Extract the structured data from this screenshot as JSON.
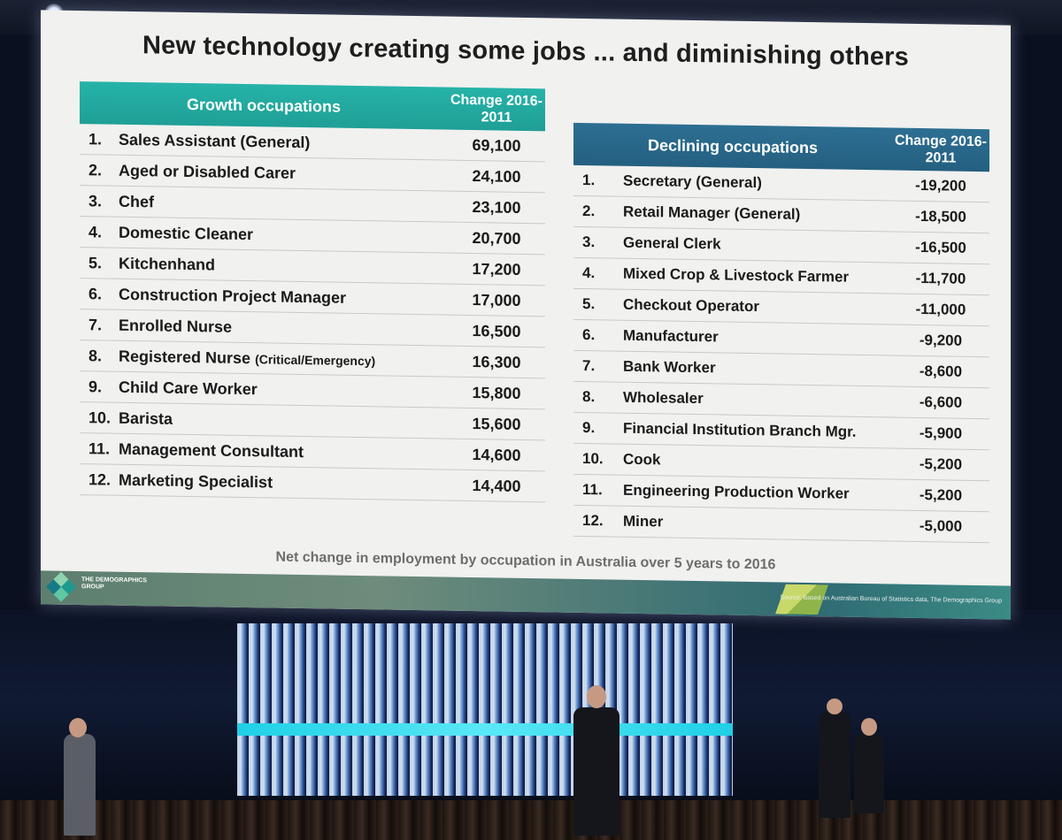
{
  "slide": {
    "title": "New technology creating some jobs ... and diminishing others",
    "caption": "Net change in employment by occupation in Australia over 5 years to 2016",
    "logo_text": "THE DEMOGRAPHICS GROUP",
    "source": "Source: Based on Australian Bureau of Statistics data, The Demographics Group"
  },
  "growth": {
    "header_occupation": "Growth occupations",
    "header_change": "Change 2016-2011",
    "accent_color": "#22aa9f",
    "rows": [
      {
        "num": "1.",
        "name": "Sales Assistant (General)",
        "note": "",
        "value": "69,100"
      },
      {
        "num": "2.",
        "name": "Aged or Disabled Carer",
        "note": "",
        "value": "24,100"
      },
      {
        "num": "3.",
        "name": "Chef",
        "note": "",
        "value": "23,100"
      },
      {
        "num": "4.",
        "name": "Domestic Cleaner",
        "note": "",
        "value": "20,700"
      },
      {
        "num": "5.",
        "name": "Kitchenhand",
        "note": "",
        "value": "17,200"
      },
      {
        "num": "6.",
        "name": "Construction Project Manager",
        "note": "",
        "value": "17,000"
      },
      {
        "num": "7.",
        "name": "Enrolled Nurse",
        "note": "",
        "value": "16,500"
      },
      {
        "num": "8.",
        "name": "Registered Nurse ",
        "note": "(Critical/Emergency)",
        "value": "16,300"
      },
      {
        "num": "9.",
        "name": "Child Care Worker",
        "note": "",
        "value": "15,800"
      },
      {
        "num": "10.",
        "name": "Barista",
        "note": "",
        "value": "15,600"
      },
      {
        "num": "11.",
        "name": "Management Consultant",
        "note": "",
        "value": "14,600"
      },
      {
        "num": "12.",
        "name": "Marketing Specialist",
        "note": "",
        "value": "14,400"
      }
    ]
  },
  "declining": {
    "header_occupation": "Declining occupations",
    "header_change": "Change 2016-2011",
    "accent_color": "#296888",
    "rows": [
      {
        "num": "1.",
        "name": "Secretary (General)",
        "value": "-19,200"
      },
      {
        "num": "2.",
        "name": "Retail Manager (General)",
        "value": "-18,500"
      },
      {
        "num": "3.",
        "name": "General Clerk",
        "value": "-16,500"
      },
      {
        "num": "4.",
        "name": "Mixed Crop & Livestock Farmer",
        "value": "-11,700"
      },
      {
        "num": "5.",
        "name": "Checkout Operator",
        "value": "-11,000"
      },
      {
        "num": "6.",
        "name": "Manufacturer",
        "value": "-9,200"
      },
      {
        "num": "7.",
        "name": "Bank Worker",
        "value": "-8,600"
      },
      {
        "num": "8.",
        "name": "Wholesaler",
        "value": "-6,600"
      },
      {
        "num": "9.",
        "name": "Financial Institution Branch Mgr.",
        "value": "-5,900"
      },
      {
        "num": "10.",
        "name": "Cook",
        "value": "-5,200"
      },
      {
        "num": "11.",
        "name": "Engineering Production Worker",
        "value": "-5,200"
      },
      {
        "num": "12.",
        "name": "Miner",
        "value": "-5,000"
      }
    ]
  }
}
